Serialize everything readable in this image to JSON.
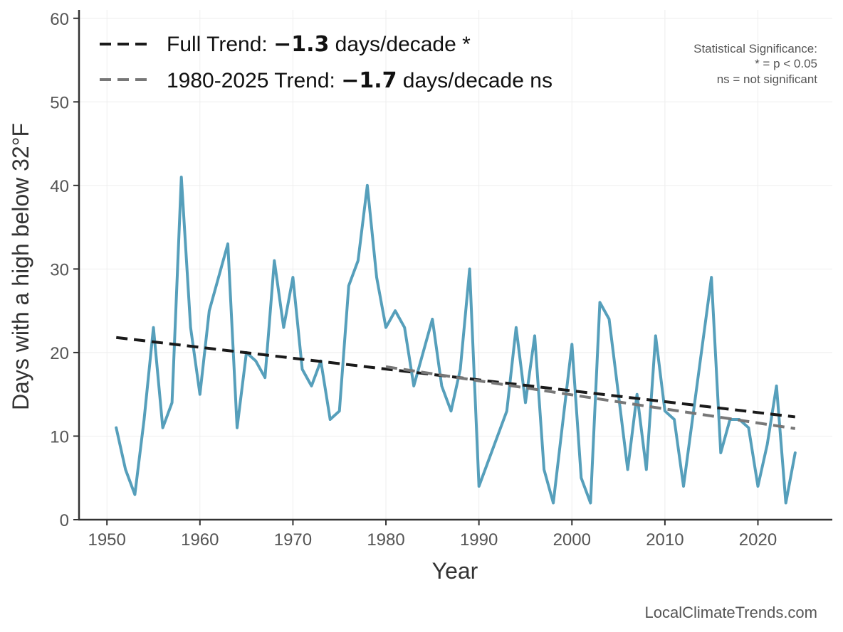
{
  "chart_data": {
    "type": "line",
    "xlabel": "Year",
    "ylabel": "Days with a high below 32°F",
    "xlim": [
      1947,
      2028
    ],
    "ylim": [
      0,
      61
    ],
    "xticks": [
      1950,
      1960,
      1970,
      1980,
      1990,
      2000,
      2010,
      2020
    ],
    "yticks": [
      0,
      10,
      20,
      30,
      40,
      50,
      60
    ],
    "grid": true,
    "legend_position": "top-left",
    "series": [
      {
        "x": [
          1951,
          1952,
          1953,
          1954,
          1955,
          1956,
          1957,
          1958,
          1959,
          1960,
          1961,
          1963,
          1964,
          1965,
          1966,
          1967,
          1968,
          1969,
          1970,
          1971,
          1972,
          1973,
          1974,
          1975,
          1976,
          1977,
          1978,
          1979,
          1980,
          1981,
          1982,
          1983,
          1985,
          1986,
          1987,
          1988,
          1989,
          1990,
          1993,
          1994,
          1995,
          1996,
          1997,
          1998,
          2000,
          2001,
          2002,
          2003,
          2004,
          2005,
          2006,
          2007,
          2008,
          2009,
          2010,
          2011,
          2012,
          2015,
          2016,
          2017,
          2018,
          2019,
          2020,
          2021,
          2022,
          2023,
          2024
        ],
        "values": [
          11,
          6,
          3,
          12,
          23,
          11,
          14,
          41,
          23,
          15,
          25,
          33,
          11,
          20,
          19,
          17,
          31,
          23,
          29,
          18,
          16,
          19,
          12,
          13,
          28,
          31,
          40,
          29,
          23,
          25,
          23,
          16,
          24,
          16,
          13,
          18,
          30,
          4,
          13,
          23,
          14,
          22,
          6,
          2,
          21,
          5,
          2,
          26,
          24,
          15,
          6,
          15,
          6,
          22,
          13,
          12,
          4,
          29,
          8,
          12,
          12,
          11,
          4,
          9,
          16,
          2,
          8
        ],
        "color": "#569fbb"
      }
    ],
    "trendlines": [
      {
        "legend_prefix": "Full Trend: ",
        "legend_value": "−1.3",
        "legend_suffix": " days/decade *",
        "x": [
          1951,
          2024
        ],
        "y": [
          21.8,
          12.3
        ],
        "color": "#1a1a1a"
      },
      {
        "legend_prefix": "1980-2025 Trend: ",
        "legend_value": "−1.7",
        "legend_suffix": " days/decade ns",
        "x": [
          1980,
          2024
        ],
        "y": [
          18.3,
          10.9
        ],
        "color": "#777777"
      }
    ],
    "significance_note": [
      "Statistical Significance:",
      "* = p < 0.05",
      "ns = not significant"
    ],
    "watermark": "LocalClimateTrends.com"
  }
}
